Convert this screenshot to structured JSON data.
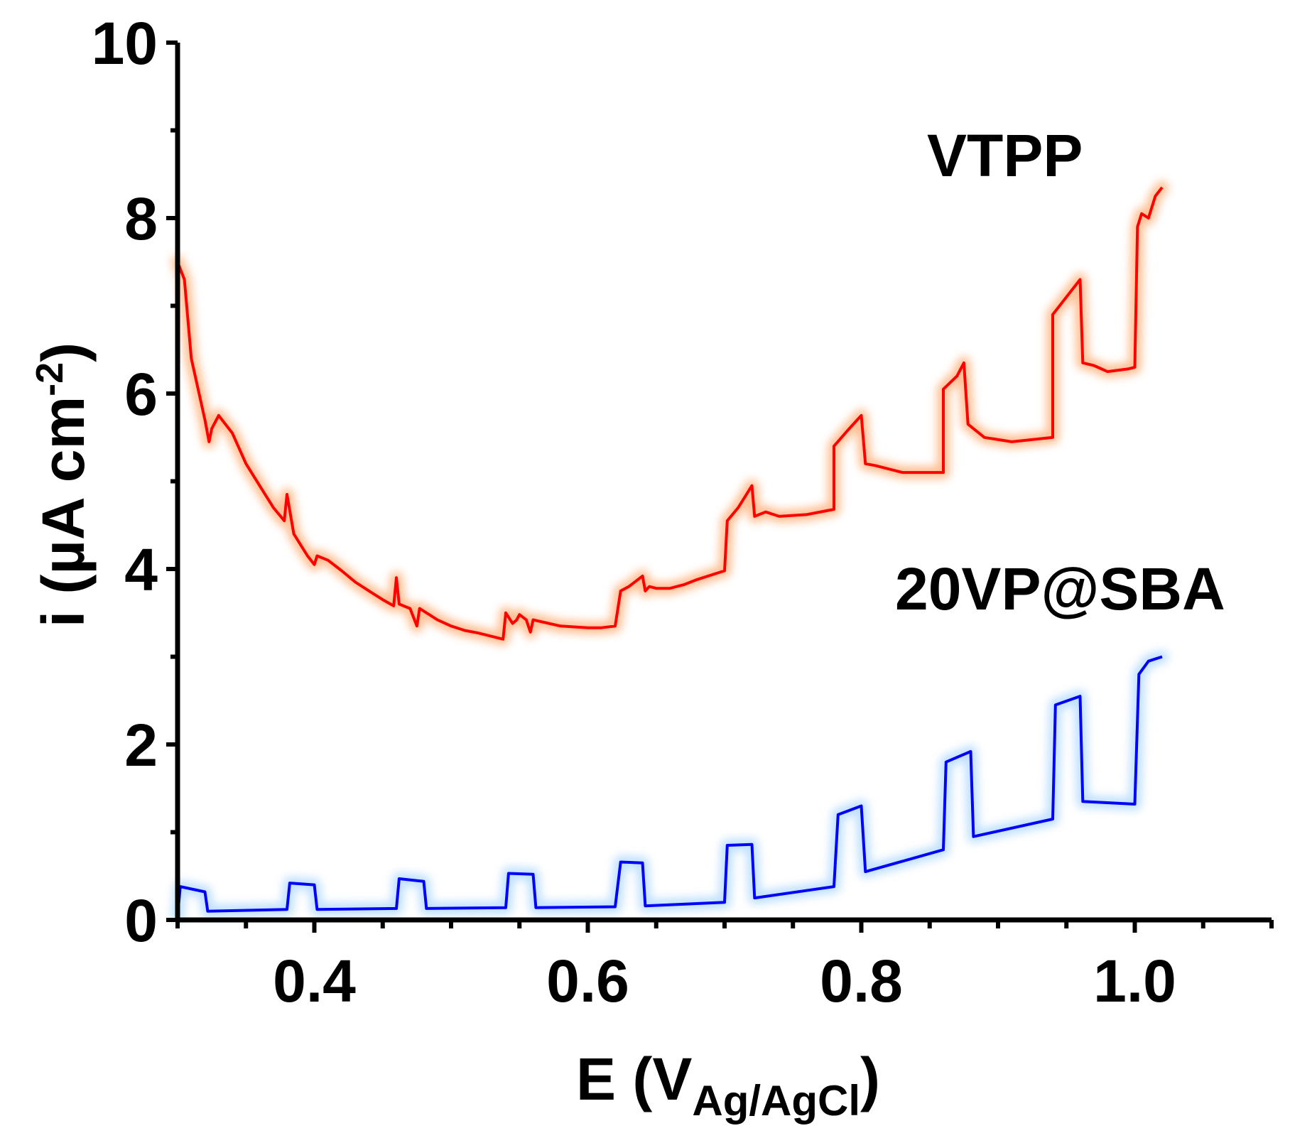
{
  "chart_data": {
    "type": "line",
    "title": "",
    "xlabel": {
      "main": "E (V",
      "sub": "Ag/AgCl",
      "close": ")"
    },
    "ylabel": {
      "main": "i (µA cm",
      "sup": "-2",
      "close": ")"
    },
    "xlim": [
      0.3,
      1.1
    ],
    "ylim": [
      0,
      10
    ],
    "x_ticks": [
      0.4,
      0.6,
      0.8,
      1.0
    ],
    "x_tick_labels": [
      "0.4",
      "0.6",
      "0.8",
      "1.0"
    ],
    "y_ticks": [
      0,
      2,
      4,
      6,
      8,
      10
    ],
    "y_tick_labels": [
      "0",
      "2",
      "4",
      "6",
      "8",
      "10"
    ],
    "grid": false,
    "series": [
      {
        "name": "VTPP",
        "color": "#ff0000",
        "glow": "#ff8c3c",
        "x": [
          0.3,
          0.305,
          0.31,
          0.32,
          0.323,
          0.325,
          0.33,
          0.34,
          0.35,
          0.36,
          0.37,
          0.378,
          0.38,
          0.385,
          0.395,
          0.4,
          0.402,
          0.41,
          0.42,
          0.43,
          0.44,
          0.45,
          0.458,
          0.46,
          0.462,
          0.47,
          0.475,
          0.477,
          0.49,
          0.5,
          0.51,
          0.52,
          0.538,
          0.54,
          0.545,
          0.548,
          0.55,
          0.555,
          0.558,
          0.56,
          0.58,
          0.6,
          0.61,
          0.62,
          0.624,
          0.63,
          0.64,
          0.642,
          0.645,
          0.65,
          0.66,
          0.67,
          0.68,
          0.7,
          0.702,
          0.71,
          0.72,
          0.722,
          0.73,
          0.74,
          0.76,
          0.78,
          0.78,
          0.79,
          0.8,
          0.803,
          0.81,
          0.83,
          0.86,
          0.86,
          0.87,
          0.875,
          0.878,
          0.89,
          0.91,
          0.94,
          0.94,
          0.95,
          0.96,
          0.962,
          0.97,
          0.98,
          0.995,
          1.0,
          1.002,
          1.005,
          1.01,
          1.012,
          1.015,
          1.02
        ],
        "y": [
          7.5,
          7.3,
          6.4,
          5.7,
          5.45,
          5.6,
          5.75,
          5.55,
          5.2,
          4.95,
          4.7,
          4.55,
          4.85,
          4.4,
          4.15,
          4.05,
          4.15,
          4.1,
          3.98,
          3.85,
          3.75,
          3.65,
          3.58,
          3.9,
          3.6,
          3.55,
          3.35,
          3.55,
          3.42,
          3.35,
          3.3,
          3.27,
          3.2,
          3.5,
          3.38,
          3.42,
          3.48,
          3.42,
          3.28,
          3.42,
          3.35,
          3.33,
          3.33,
          3.35,
          3.75,
          3.8,
          3.92,
          3.75,
          3.8,
          3.78,
          3.78,
          3.82,
          3.88,
          3.98,
          4.55,
          4.7,
          4.95,
          4.6,
          4.65,
          4.6,
          4.62,
          4.68,
          5.4,
          5.58,
          5.75,
          5.2,
          5.18,
          5.1,
          5.1,
          6.05,
          6.2,
          6.35,
          5.65,
          5.5,
          5.45,
          5.5,
          6.9,
          7.1,
          7.3,
          6.35,
          6.32,
          6.25,
          6.28,
          6.3,
          7.9,
          8.05,
          8.0,
          8.1,
          8.25,
          8.35
        ]
      },
      {
        "name": "20VP@SBA",
        "color": "#0000ff",
        "glow": "#8cc8ff",
        "x": [
          0.3,
          0.302,
          0.32,
          0.322,
          0.38,
          0.382,
          0.4,
          0.402,
          0.46,
          0.462,
          0.48,
          0.482,
          0.54,
          0.542,
          0.56,
          0.562,
          0.62,
          0.624,
          0.64,
          0.642,
          0.7,
          0.702,
          0.72,
          0.722,
          0.78,
          0.783,
          0.8,
          0.803,
          0.86,
          0.862,
          0.88,
          0.882,
          0.94,
          0.942,
          0.96,
          0.962,
          1.0,
          1.003,
          1.01,
          1.02
        ],
        "y": [
          0.05,
          0.38,
          0.32,
          0.1,
          0.12,
          0.42,
          0.4,
          0.12,
          0.13,
          0.47,
          0.44,
          0.13,
          0.14,
          0.53,
          0.52,
          0.14,
          0.15,
          0.66,
          0.65,
          0.16,
          0.2,
          0.85,
          0.86,
          0.25,
          0.38,
          1.2,
          1.3,
          0.55,
          0.8,
          1.8,
          1.92,
          0.95,
          1.15,
          2.45,
          2.55,
          1.35,
          1.32,
          2.8,
          2.95,
          3.0
        ]
      }
    ],
    "annotations": [
      {
        "text": "VTPP",
        "series": "VTPP"
      },
      {
        "text": "20VP@SBA",
        "series": "20VP@SBA"
      }
    ]
  }
}
